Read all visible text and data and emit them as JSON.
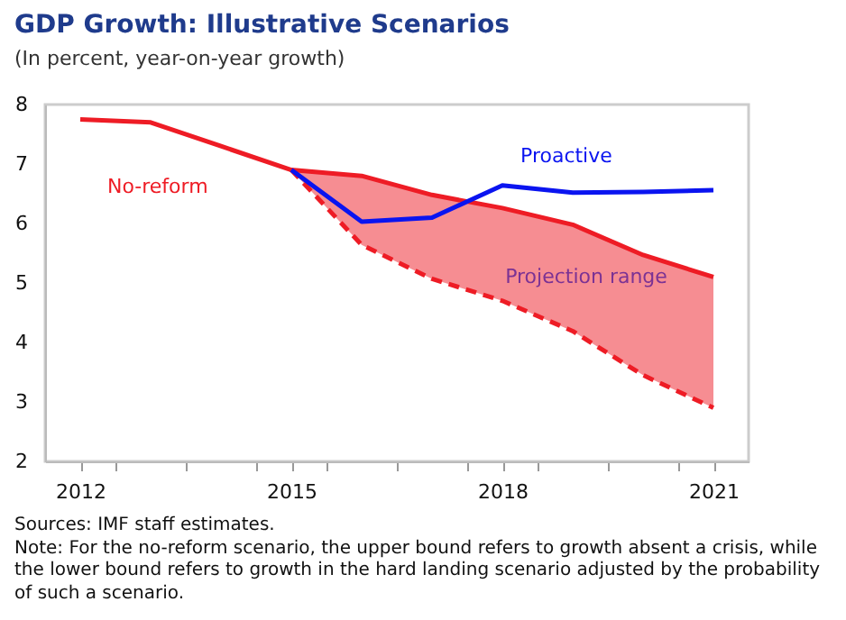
{
  "chart_data": {
    "type": "line",
    "title": "GDP Growth: Illustrative Scenarios",
    "subtitle": "(In percent, year-on-year growth)",
    "x": [
      2012,
      2013,
      2014,
      2015,
      2016,
      2017,
      2018,
      2019,
      2020,
      2021
    ],
    "series": [
      {
        "name": "No-reform",
        "color": "#ee1c25",
        "values": [
          7.75,
          7.7,
          7.3,
          6.9,
          6.8,
          6.48,
          6.26,
          5.98,
          5.47,
          5.1
        ],
        "lower": [
          null,
          null,
          null,
          6.9,
          5.64,
          5.07,
          4.7,
          4.19,
          3.45,
          2.9
        ],
        "upper": [
          null,
          null,
          null,
          6.9,
          6.8,
          6.48,
          6.26,
          5.98,
          5.47,
          5.1
        ]
      },
      {
        "color": "#ee1c25",
        "line_style": "dashed",
        "values": [
          null,
          null,
          null,
          6.9,
          5.64,
          5.07,
          4.7,
          4.19,
          3.45,
          2.9
        ]
      },
      {
        "name": "Proactive",
        "color": "#0a14f0",
        "values": [
          null,
          null,
          null,
          6.9,
          6.03,
          6.1,
          6.64,
          6.52,
          6.53,
          6.56
        ]
      }
    ],
    "xlim": [
      2011.5,
      2021.5
    ],
    "xticks": [
      2012,
      {
        "value": 2012.5,
        "label": null
      },
      {
        "value": 2013.5,
        "label": null
      },
      {
        "value": 2014.5,
        "label": null
      },
      2015,
      {
        "value": 2015.5,
        "label": null
      },
      {
        "value": 2016.5,
        "label": null
      },
      {
        "value": 2017.5,
        "label": null
      },
      2018,
      {
        "value": 2018.5,
        "label": null
      },
      {
        "value": 2019.5,
        "label": null
      },
      {
        "value": 2020.5,
        "label": null
      },
      2021
    ],
    "ylim": [
      2,
      8
    ],
    "yticks": [
      2,
      3,
      4,
      5,
      6,
      7,
      8
    ],
    "grid": false,
    "line_style": "solid",
    "marker": "none",
    "annotations": [
      "Projection range",
      "Sources: IMF staff estimates.",
      "Note: For the no-reform scenario, the upper bound refers to growth absent a crisis, while the lower bound refers to growth in the hard landing scenario adjusted by the probability of such a scenario."
    ]
  }
}
